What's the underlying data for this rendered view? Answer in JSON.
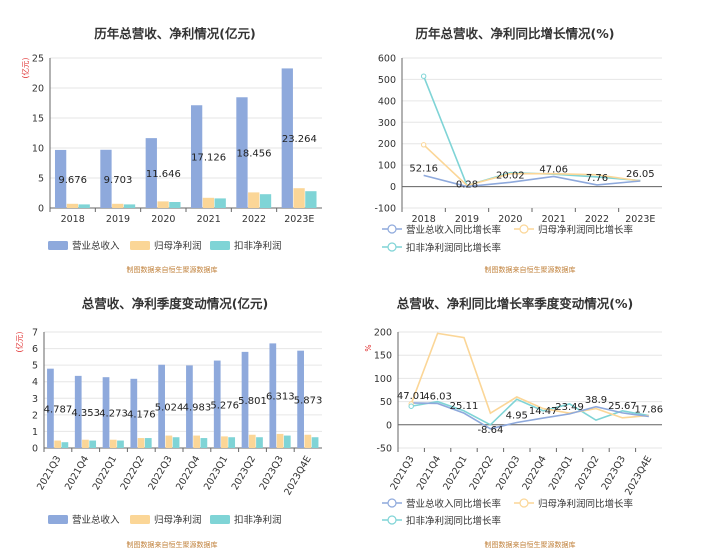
{
  "colors": {
    "revenue": "#8ea9dc",
    "net_profit": "#fbd697",
    "deducted_profit": "#7fd4d6",
    "source_text": "#c0803a",
    "unit_text": "#e03030"
  },
  "chart_data": [
    {
      "id": "c1",
      "type": "bar",
      "title": "历年总营收、净利情况(亿元)",
      "unit_label": "(亿元)",
      "categories": [
        "2018",
        "2019",
        "2020",
        "2021",
        "2022",
        "2023E"
      ],
      "ylim": [
        0,
        25
      ],
      "yticks": [
        0,
        5,
        10,
        15,
        20,
        25
      ],
      "series": [
        {
          "name": "营业总收入",
          "values": [
            9.676,
            9.703,
            11.646,
            17.126,
            18.456,
            23.264
          ],
          "labels": [
            "9.676",
            "9.703",
            "11.646",
            "17.126",
            "18.456",
            "23.264"
          ]
        },
        {
          "name": "归母净利润",
          "values": [
            0.7,
            0.7,
            1.1,
            1.7,
            2.6,
            3.3
          ]
        },
        {
          "name": "扣非净利润",
          "values": [
            0.6,
            0.6,
            1.0,
            1.6,
            2.3,
            2.8
          ]
        }
      ],
      "legend": [
        "营业总收入",
        "归母净利润",
        "扣非净利润"
      ],
      "source": "制图数据来自恒生聚源数据库"
    },
    {
      "id": "c2",
      "type": "line",
      "title": "历年总营收、净利同比增长情况(%)",
      "categories": [
        "2018",
        "2019",
        "2020",
        "2021",
        "2022",
        "2023E"
      ],
      "ylim": [
        -100,
        600
      ],
      "yticks": [
        -100,
        0,
        100,
        200,
        300,
        400,
        500,
        600
      ],
      "series": [
        {
          "name": "营业总收入同比增长率",
          "values": [
            52.16,
            0.28,
            20.02,
            47.06,
            7.76,
            26.05
          ],
          "labels": [
            "52.16",
            "0.28",
            "20.02",
            "47.06",
            "7.76",
            "26.05"
          ]
        },
        {
          "name": "归母净利润同比增长率",
          "values": [
            195,
            5,
            60,
            60,
            55,
            26
          ]
        },
        {
          "name": "扣非净利润同比增长率",
          "values": [
            515,
            5,
            65,
            58,
            45,
            28
          ]
        }
      ],
      "legend": [
        "营业总收入同比增长率",
        "归母净利润同比增长率",
        "扣非净利润同比增长率"
      ],
      "source": "制图数据来自恒生聚源数据库"
    },
    {
      "id": "c3",
      "type": "bar",
      "title": "总营收、净利季度变动情况(亿元)",
      "unit_label": "(亿元)",
      "categories": [
        "2021Q3",
        "2021Q4",
        "2022Q1",
        "2022Q2",
        "2022Q3",
        "2022Q4",
        "2023Q1",
        "2023Q2",
        "2023Q3",
        "2023Q4E"
      ],
      "ylim": [
        0,
        7
      ],
      "yticks": [
        0,
        1,
        2,
        3,
        4,
        5,
        6,
        7
      ],
      "series": [
        {
          "name": "营业总收入",
          "values": [
            4.787,
            4.353,
            4.273,
            4.176,
            5.024,
            4.983,
            5.276,
            5.801,
            6.313,
            5.873
          ],
          "labels": [
            "4.787",
            "4.353",
            "4.273",
            "4.176",
            "5.024",
            "4.983",
            "5.276",
            "5.801",
            "6.313",
            "5.873"
          ]
        },
        {
          "name": "归母净利润",
          "values": [
            0.45,
            0.5,
            0.5,
            0.6,
            0.75,
            0.75,
            0.7,
            0.8,
            0.85,
            0.8
          ]
        },
        {
          "name": "扣非净利润",
          "values": [
            0.35,
            0.45,
            0.45,
            0.6,
            0.65,
            0.6,
            0.65,
            0.65,
            0.75,
            0.65
          ]
        }
      ],
      "legend": [
        "营业总收入",
        "归母净利润",
        "扣非净利润"
      ],
      "source": "制图数据来自恒生聚源数据库"
    },
    {
      "id": "c4",
      "type": "line",
      "title": "总营收、净利同比增长率季度变动情况(%)",
      "unit_label": "%",
      "categories": [
        "2021Q3",
        "2021Q4",
        "2022Q1",
        "2022Q2",
        "2022Q3",
        "2022Q4",
        "2023Q1",
        "2023Q2",
        "2023Q3",
        "2023Q4E"
      ],
      "ylim": [
        -50,
        200
      ],
      "yticks": [
        -50,
        0,
        50,
        100,
        150,
        200
      ],
      "series": [
        {
          "name": "营业总收入同比增长率",
          "values": [
            47.01,
            46.03,
            25.11,
            -8.64,
            4.95,
            14.47,
            23.49,
            38.9,
            25.67,
            17.86
          ],
          "labels": [
            "47.01",
            "46.03",
            "25.11",
            "-8.64",
            "4.95",
            "14.47",
            "23.49",
            "38.9",
            "25.67",
            "17.86"
          ]
        },
        {
          "name": "归母净利润同比增长率",
          "values": [
            45,
            197,
            188,
            25,
            60,
            35,
            25,
            35,
            15,
            20
          ]
        },
        {
          "name": "扣非净利润同比增长率",
          "values": [
            40,
            50,
            30,
            0,
            55,
            30,
            45,
            10,
            30,
            20
          ]
        }
      ],
      "legend": [
        "营业总收入同比增长率",
        "归母净利润同比增长率",
        "扣非净利润同比增长率"
      ],
      "source": "制图数据来自恒生聚源数据库"
    }
  ]
}
